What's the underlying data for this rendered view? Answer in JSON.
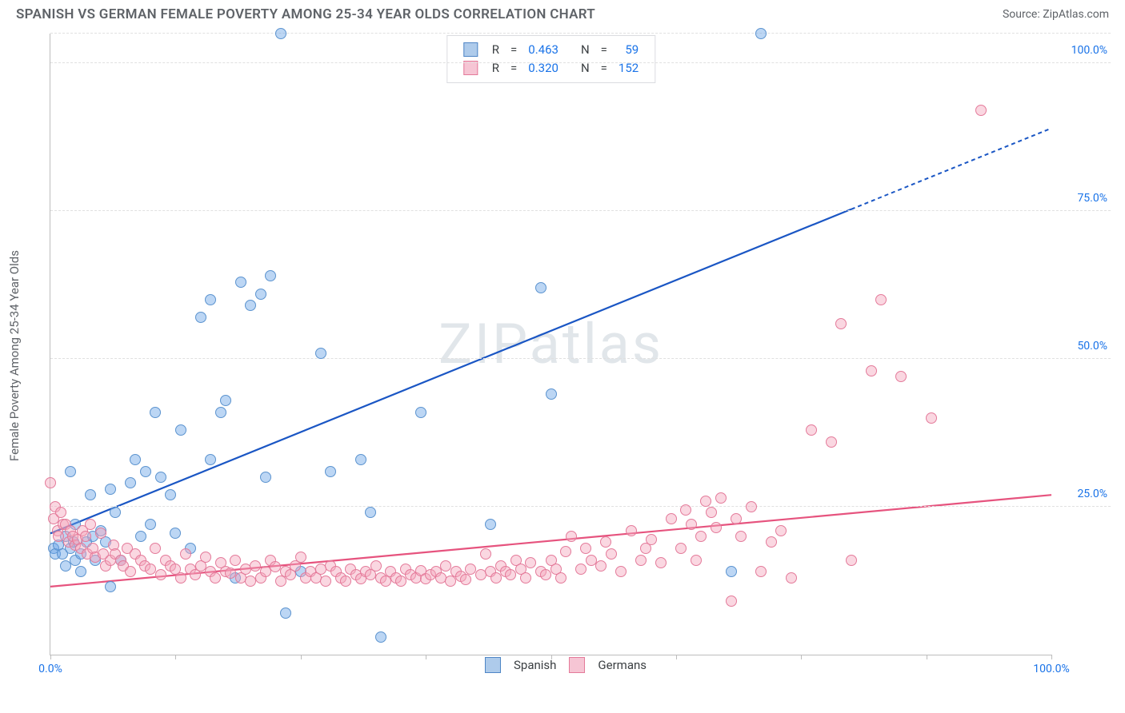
{
  "header": {
    "title": "SPANISH VS GERMAN FEMALE POVERTY AMONG 25-34 YEAR OLDS CORRELATION CHART",
    "source_prefix": "Source: ",
    "source_name": "ZipAtlas.com"
  },
  "watermark": "ZIPatlas",
  "chart": {
    "type": "scatter",
    "ylabel": "Female Poverty Among 25-34 Year Olds",
    "xlim": [
      0,
      100
    ],
    "ylim": [
      0,
      105
    ],
    "x_ticks": [
      0,
      12.5,
      25,
      37.5,
      50,
      62.5,
      75,
      87.5,
      100
    ],
    "x_tick_labels": {
      "0": "0.0%",
      "100": "100.0%"
    },
    "y_gridlines": [
      25,
      50,
      75,
      100,
      105
    ],
    "y_tick_labels": {
      "25": "25.0%",
      "50": "50.0%",
      "75": "75.0%",
      "100": "100.0%"
    },
    "axis_label_color": "#1a73e8",
    "grid_color": "#e0e0e0",
    "background_color": "#ffffff",
    "point_radius": 7,
    "point_opacity": 0.55,
    "series": [
      {
        "key": "spanish",
        "label": "Spanish",
        "color_fill": "rgba(107,165,231,0.45)",
        "color_stroke": "#5b93cf",
        "line_color": "#1a56c4",
        "swatch_fill": "#aecbeb",
        "swatch_border": "#4f86c6",
        "R": "0.463",
        "N": "59",
        "trend": {
          "x1": 0,
          "y1": 20.5,
          "x2": 100,
          "y2": 89,
          "solid_until_x": 80
        },
        "points": [
          [
            0.3,
            18
          ],
          [
            0.5,
            17
          ],
          [
            0.8,
            18.5
          ],
          [
            1.2,
            17
          ],
          [
            1.5,
            20
          ],
          [
            1.5,
            15
          ],
          [
            2,
            18
          ],
          [
            2,
            31
          ],
          [
            2.3,
            19
          ],
          [
            2.5,
            16
          ],
          [
            2.5,
            22
          ],
          [
            3,
            17
          ],
          [
            3,
            14
          ],
          [
            3.6,
            19
          ],
          [
            4,
            27
          ],
          [
            4.5,
            16
          ],
          [
            4.2,
            20
          ],
          [
            5,
            21
          ],
          [
            5.5,
            19
          ],
          [
            6,
            28
          ],
          [
            6,
            11.5
          ],
          [
            6.5,
            24
          ],
          [
            7,
            16
          ],
          [
            8,
            29
          ],
          [
            8.5,
            33
          ],
          [
            9,
            20
          ],
          [
            9.5,
            31
          ],
          [
            10,
            22
          ],
          [
            10.5,
            41
          ],
          [
            11,
            30
          ],
          [
            12,
            27
          ],
          [
            12.5,
            20.5
          ],
          [
            13,
            38
          ],
          [
            14,
            18
          ],
          [
            15,
            57
          ],
          [
            16,
            33
          ],
          [
            16,
            60
          ],
          [
            17,
            41
          ],
          [
            17.5,
            43
          ],
          [
            18.5,
            13
          ],
          [
            19,
            63
          ],
          [
            20,
            59
          ],
          [
            21,
            61
          ],
          [
            21.5,
            30
          ],
          [
            22,
            64
          ],
          [
            23,
            105
          ],
          [
            23.5,
            7
          ],
          [
            25,
            14
          ],
          [
            27,
            51
          ],
          [
            28,
            31
          ],
          [
            31,
            33
          ],
          [
            32,
            24
          ],
          [
            33,
            3
          ],
          [
            37,
            41
          ],
          [
            44,
            22
          ],
          [
            49,
            62
          ],
          [
            50,
            44
          ],
          [
            68,
            14
          ],
          [
            71,
            105
          ]
        ]
      },
      {
        "key": "germans",
        "label": "Germans",
        "color_fill": "rgba(244,166,189,0.45)",
        "color_stroke": "#e47a9a",
        "line_color": "#e6537e",
        "swatch_fill": "#f6c5d4",
        "swatch_border": "#e47a9a",
        "R": "0.320",
        "N": "152",
        "trend": {
          "x1": 0,
          "y1": 11.5,
          "x2": 100,
          "y2": 27,
          "solid_until_x": 100
        },
        "points": [
          [
            0,
            29
          ],
          [
            0.3,
            23
          ],
          [
            0.5,
            25
          ],
          [
            0.7,
            21
          ],
          [
            0.8,
            20
          ],
          [
            1.0,
            24
          ],
          [
            1.3,
            22
          ],
          [
            1.5,
            22
          ],
          [
            1.8,
            19
          ],
          [
            2,
            21
          ],
          [
            2.2,
            20
          ],
          [
            2.5,
            18.5
          ],
          [
            2.7,
            19.5
          ],
          [
            3,
            18
          ],
          [
            3.2,
            21
          ],
          [
            3.5,
            20
          ],
          [
            3.7,
            17
          ],
          [
            4,
            22
          ],
          [
            4.2,
            18
          ],
          [
            4.5,
            16.5
          ],
          [
            5,
            20.5
          ],
          [
            5.3,
            17
          ],
          [
            5.5,
            15
          ],
          [
            6,
            16
          ],
          [
            6.3,
            18.5
          ],
          [
            6.5,
            17
          ],
          [
            7,
            16
          ],
          [
            7.3,
            15
          ],
          [
            7.7,
            18
          ],
          [
            8,
            14
          ],
          [
            8.5,
            17
          ],
          [
            9,
            16
          ],
          [
            9.4,
            15
          ],
          [
            10,
            14.5
          ],
          [
            10.5,
            18
          ],
          [
            11,
            13.5
          ],
          [
            11.5,
            16
          ],
          [
            12,
            15
          ],
          [
            12.5,
            14.5
          ],
          [
            13,
            13
          ],
          [
            13.5,
            17
          ],
          [
            14,
            14.5
          ],
          [
            14.5,
            13.5
          ],
          [
            15,
            15
          ],
          [
            15.5,
            16.5
          ],
          [
            16,
            14
          ],
          [
            16.5,
            13
          ],
          [
            17,
            15.5
          ],
          [
            17.5,
            14
          ],
          [
            18,
            13.8
          ],
          [
            18.5,
            16
          ],
          [
            19,
            13
          ],
          [
            19.5,
            14.5
          ],
          [
            20,
            12.5
          ],
          [
            20.5,
            15
          ],
          [
            21,
            13
          ],
          [
            21.5,
            14
          ],
          [
            22,
            16
          ],
          [
            22.5,
            14.8
          ],
          [
            23,
            12.5
          ],
          [
            23.5,
            14
          ],
          [
            24,
            13.5
          ],
          [
            24.5,
            15
          ],
          [
            25,
            16.5
          ],
          [
            25.5,
            13
          ],
          [
            26,
            14
          ],
          [
            26.5,
            13
          ],
          [
            27,
            14.5
          ],
          [
            27.5,
            12.5
          ],
          [
            28,
            15
          ],
          [
            28.5,
            14
          ],
          [
            29,
            13
          ],
          [
            29.5,
            12.5
          ],
          [
            30,
            14.5
          ],
          [
            30.5,
            13.5
          ],
          [
            31,
            12.8
          ],
          [
            31.5,
            14
          ],
          [
            32,
            13.5
          ],
          [
            32.5,
            15
          ],
          [
            33,
            13
          ],
          [
            33.5,
            12.5
          ],
          [
            34,
            14
          ],
          [
            34.5,
            13
          ],
          [
            35,
            12.4
          ],
          [
            35.5,
            14.5
          ],
          [
            36,
            13.5
          ],
          [
            36.5,
            13
          ],
          [
            37,
            14.2
          ],
          [
            37.5,
            12.8
          ],
          [
            38,
            13.5
          ],
          [
            38.5,
            14
          ],
          [
            39,
            13
          ],
          [
            39.5,
            15
          ],
          [
            40,
            12.5
          ],
          [
            40.5,
            14
          ],
          [
            41,
            13.2
          ],
          [
            41.5,
            12.7
          ],
          [
            42,
            14.5
          ],
          [
            43,
            13.5
          ],
          [
            43.5,
            17
          ],
          [
            44,
            14
          ],
          [
            44.5,
            13
          ],
          [
            45,
            15
          ],
          [
            45.5,
            14
          ],
          [
            46,
            13.5
          ],
          [
            46.5,
            16
          ],
          [
            47,
            14.5
          ],
          [
            47.5,
            13
          ],
          [
            48,
            15.5
          ],
          [
            49,
            14
          ],
          [
            49.5,
            13.5
          ],
          [
            50,
            16
          ],
          [
            50.5,
            14.5
          ],
          [
            51,
            13
          ],
          [
            51.5,
            17.5
          ],
          [
            52,
            20
          ],
          [
            53,
            14.5
          ],
          [
            53.5,
            18
          ],
          [
            54,
            16
          ],
          [
            55,
            15
          ],
          [
            55.5,
            19
          ],
          [
            56,
            17
          ],
          [
            57,
            14
          ],
          [
            58,
            21
          ],
          [
            59,
            16
          ],
          [
            59.5,
            18
          ],
          [
            60,
            19.5
          ],
          [
            61,
            15.5
          ],
          [
            62,
            23
          ],
          [
            63,
            18
          ],
          [
            63.5,
            24.5
          ],
          [
            64,
            22
          ],
          [
            64.5,
            16
          ],
          [
            65,
            20
          ],
          [
            65.5,
            26
          ],
          [
            66,
            24
          ],
          [
            66.5,
            21.5
          ],
          [
            67,
            26.5
          ],
          [
            68,
            9
          ],
          [
            68.5,
            23
          ],
          [
            69,
            20
          ],
          [
            70,
            25
          ],
          [
            71,
            14
          ],
          [
            72,
            19
          ],
          [
            73,
            21
          ],
          [
            74,
            13
          ],
          [
            76,
            38
          ],
          [
            78,
            36
          ],
          [
            79,
            56
          ],
          [
            80,
            16
          ],
          [
            82,
            48
          ],
          [
            83,
            60
          ],
          [
            85,
            47
          ],
          [
            88,
            40
          ],
          [
            93,
            92
          ]
        ]
      }
    ]
  },
  "legend_top": {
    "r_label": "R",
    "n_label": "N",
    "eq": "=",
    "value_color": "#1a73e8",
    "label_color": "#3c4043"
  },
  "legend_bottom": {
    "items": [
      "Spanish",
      "Germans"
    ]
  }
}
